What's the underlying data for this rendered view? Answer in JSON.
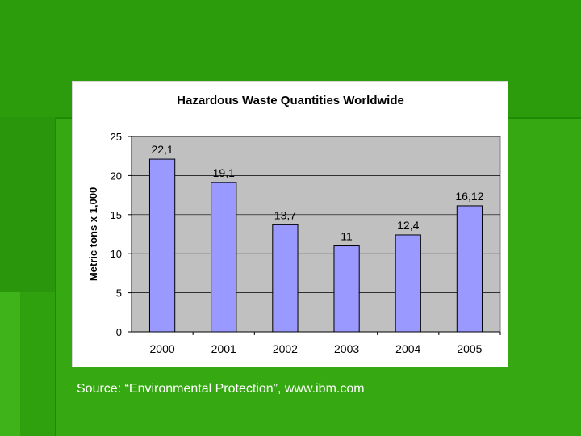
{
  "slide": {
    "background_color": "#2c9b0c",
    "source_text": "Source: “Environmental Protection”,  www.ibm.com"
  },
  "chart_data": {
    "type": "bar",
    "title": "Hazardous Waste Quantities Worldwide",
    "xlabel": "",
    "ylabel": "Metric tons x 1,000",
    "categories": [
      "2000",
      "2001",
      "2002",
      "2003",
      "2004",
      "2005"
    ],
    "values": [
      22.1,
      19.1,
      13.7,
      11,
      12.4,
      16.12
    ],
    "data_labels": [
      "22,1",
      "19,1",
      "13,7",
      "11",
      "12,4",
      "16,12"
    ],
    "ylim": [
      0,
      25
    ],
    "yticks": [
      0,
      5,
      10,
      15,
      20,
      25
    ],
    "grid": true,
    "legend": "none",
    "bar_color": "#9999ff",
    "plot_background": "#c0c0c0"
  }
}
